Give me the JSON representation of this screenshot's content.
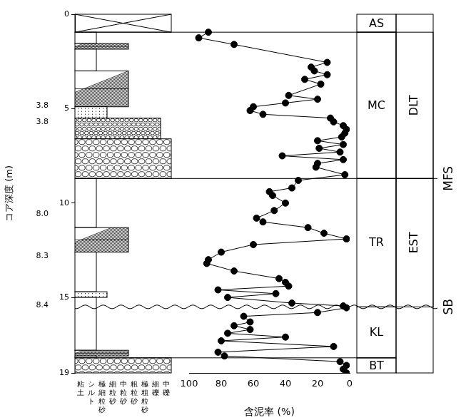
{
  "chart_data": {
    "type": "line",
    "xlabel": "含泥率 (%)",
    "ylabel": "コア深度 (m)",
    "x": [
      88,
      94,
      72,
      14,
      24,
      22,
      14,
      28,
      18,
      38,
      20,
      40,
      60,
      62,
      54,
      12,
      10,
      4,
      2,
      3,
      5,
      20,
      4,
      19,
      6,
      42,
      4,
      20,
      21,
      3,
      32,
      36,
      50,
      48,
      40,
      47,
      58,
      54,
      26,
      16,
      2,
      60,
      80,
      88,
      89,
      72,
      44,
      40,
      38,
      82,
      46,
      76,
      36,
      4,
      2,
      20,
      66,
      62,
      72,
      62,
      76,
      40,
      80,
      10,
      82,
      78,
      6,
      2,
      4,
      2
    ],
    "values": [
      0.95,
      1.25,
      1.6,
      2.55,
      2.8,
      3.0,
      3.2,
      3.45,
      3.7,
      4.3,
      4.5,
      4.7,
      4.9,
      5.1,
      5.3,
      5.5,
      5.7,
      5.9,
      6.1,
      6.3,
      6.5,
      6.7,
      6.9,
      7.1,
      7.3,
      7.5,
      7.7,
      7.9,
      8.1,
      8.5,
      8.8,
      9.2,
      9.4,
      9.6,
      10.0,
      10.4,
      10.8,
      11.0,
      11.3,
      11.6,
      11.9,
      12.2,
      12.6,
      13.0,
      13.2,
      13.6,
      14.0,
      14.2,
      14.4,
      14.6,
      14.8,
      15.0,
      15.3,
      15.45,
      15.55,
      15.8,
      16.0,
      16.3,
      16.5,
      16.7,
      16.9,
      17.1,
      17.3,
      17.6,
      17.9,
      18.1,
      18.4,
      18.6,
      18.8,
      19.0
    ],
    "xlim": [
      100,
      0
    ],
    "xticks": [
      100,
      80,
      60,
      40,
      20,
      0
    ],
    "ylim": [
      19,
      0
    ],
    "yticks": [
      0,
      5,
      10,
      15,
      19
    ],
    "color": "#000000",
    "marker": "circle",
    "grid": false,
    "grain_sizes": [
      "粘土",
      "シルト",
      "極細粒砂",
      "細粒砂",
      "中粒砂",
      "粗粒砂",
      "極粗粒砂",
      "細礫",
      "中礫"
    ],
    "lithology": [
      {
        "top": 0,
        "bottom": 0.95,
        "grain": null
      },
      {
        "top": 0.95,
        "bottom": 1.55,
        "grain": "シルト"
      },
      {
        "top": 1.55,
        "bottom": 1.85,
        "grain": "中粒砂"
      },
      {
        "top": 1.85,
        "bottom": 3.0,
        "grain": "シルト"
      },
      {
        "top": 3.0,
        "bottom": 4.9,
        "grain": "中粒砂"
      },
      {
        "top": 4.9,
        "bottom": 5.5,
        "grain": "極細粒砂"
      },
      {
        "top": 5.5,
        "bottom": 6.6,
        "grain": "細礫"
      },
      {
        "top": 6.6,
        "bottom": 8.7,
        "grain": "中礫"
      },
      {
        "top": 8.7,
        "bottom": 11.3,
        "grain": "シルト"
      },
      {
        "top": 11.3,
        "bottom": 12.6,
        "grain": "中粒砂"
      },
      {
        "top": 12.6,
        "bottom": 14.7,
        "grain": "シルト"
      },
      {
        "top": 14.7,
        "bottom": 15.0,
        "grain": "極細粒砂"
      },
      {
        "top": 15.0,
        "bottom": 17.8,
        "grain": "シルト"
      },
      {
        "top": 17.8,
        "bottom": 18.1,
        "grain": "中粒砂"
      },
      {
        "top": 18.1,
        "bottom": 18.2,
        "grain": "シルト"
      },
      {
        "top": 18.2,
        "bottom": 19.0,
        "grain": "中礫"
      }
    ],
    "annotations": [
      {
        "y": 4.85,
        "text": "3.8"
      },
      {
        "y": 5.7,
        "text": "3.8"
      },
      {
        "y": 10.6,
        "text": "8.0"
      },
      {
        "y": 12.8,
        "text": "8.3"
      },
      {
        "y": 15.4,
        "text": "8.4"
      }
    ],
    "facies": [
      {
        "label": "AS",
        "top": 0,
        "bottom": 0.95
      },
      {
        "label": "MC",
        "top": 0.95,
        "bottom": 8.7
      },
      {
        "label": "TR",
        "top": 8.7,
        "bottom": 15.5
      },
      {
        "label": "KL",
        "top": 15.5,
        "bottom": 18.2
      },
      {
        "label": "BT",
        "top": 18.2,
        "bottom": 19
      }
    ],
    "systems_tracts": [
      {
        "label": "DLT",
        "top": 0.95,
        "bottom": 8.7
      },
      {
        "label": "EST",
        "top": 8.7,
        "bottom": 15.5
      }
    ],
    "surfaces": [
      {
        "label": "MFS",
        "y": 8.7,
        "line_style": "solid"
      },
      {
        "label": "SB",
        "y": 15.5,
        "line_style": "wavy"
      }
    ]
  }
}
